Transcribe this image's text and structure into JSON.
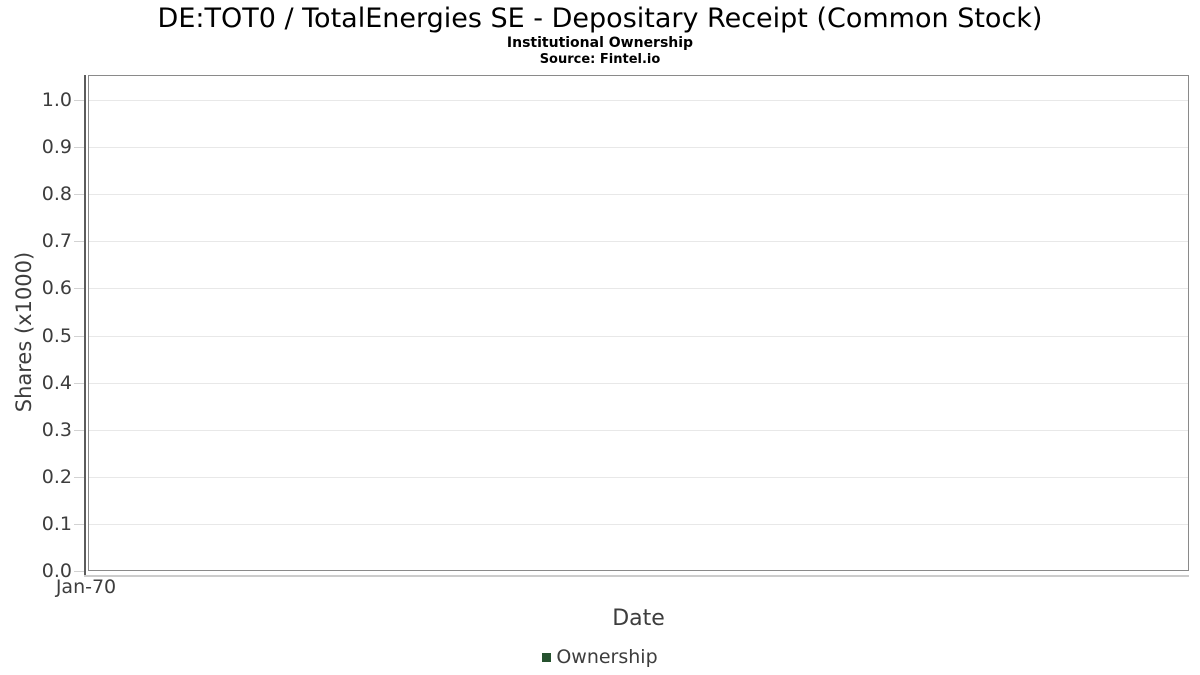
{
  "chart_data": {
    "type": "line",
    "title": "DE:TOT0 / TotalEnergies SE - Depositary Receipt (Common Stock)",
    "subtitle": "Institutional Ownership",
    "source": "Source: Fintel.io",
    "xlabel": "Date",
    "ylabel": "Shares (x1000)",
    "ylim": [
      0.0,
      1.0
    ],
    "y_tick_step": 0.1,
    "y_ticks": [
      "0.0",
      "0.1",
      "0.2",
      "0.3",
      "0.4",
      "0.5",
      "0.6",
      "0.7",
      "0.8",
      "0.9",
      "1.0"
    ],
    "x_ticks": [
      "Jan-70"
    ],
    "grid": true,
    "legend_position": "bottom",
    "series": [
      {
        "name": "Ownership",
        "color": "#26522f",
        "x": [],
        "values": []
      }
    ]
  },
  "style_colors": {
    "plot_border": "#8a8a8a",
    "y_axis_line": "#5c5c5c",
    "x_axis_line": "#cccccc",
    "gridline": "#e8e8e8",
    "tick_text": "#3d3d3d",
    "title_text": "#000000"
  }
}
